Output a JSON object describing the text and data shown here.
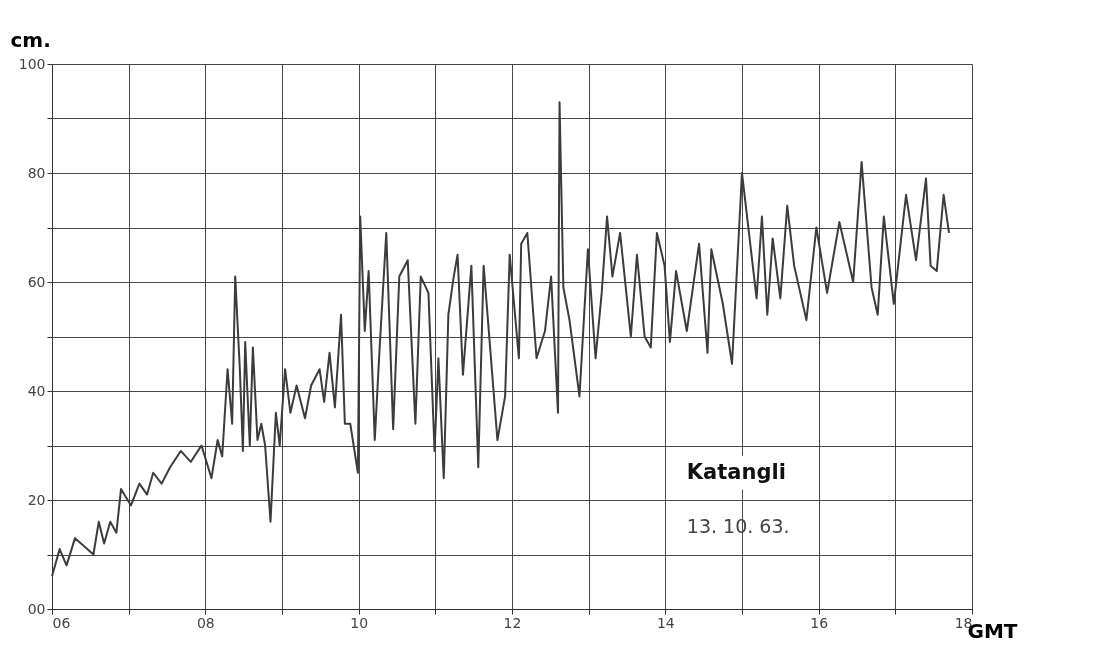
{
  "chart_data": {
    "type": "line",
    "ylabel": "cm.",
    "xlabel": "GMT",
    "annotations": [
      "Katangli",
      "13. 10. 63."
    ],
    "xlim": [
      6,
      18
    ],
    "ylim": [
      0,
      100
    ],
    "xticks": [
      {
        "value": 6,
        "label": "06"
      },
      {
        "value": 7,
        "label": null
      },
      {
        "value": 8,
        "label": "08"
      },
      {
        "value": 9,
        "label": null
      },
      10,
      {
        "value": 11,
        "label": null
      },
      12,
      {
        "value": 13,
        "label": null
      },
      14,
      {
        "value": 15,
        "label": null
      },
      16,
      {
        "value": 17,
        "label": null
      },
      18
    ],
    "yticks": [
      {
        "value": 0,
        "label": "00"
      },
      {
        "value": 10,
        "label": null
      },
      20,
      {
        "value": 30,
        "label": null
      },
      40,
      {
        "value": 50,
        "label": null
      },
      60,
      {
        "value": 70,
        "label": null
      },
      80,
      {
        "value": 90,
        "label": null
      },
      100
    ],
    "grid": true,
    "marker": "none",
    "line_style": "solid",
    "series": [
      {
        "color": "#3c3c3c",
        "x": [
          6.0,
          6.1,
          6.19,
          6.3,
          6.46,
          6.54,
          6.61,
          6.68,
          6.76,
          6.84,
          6.9,
          7.03,
          7.14,
          7.24,
          7.32,
          7.43,
          7.54,
          7.68,
          7.81,
          7.95,
          8.08,
          8.16,
          8.22,
          8.29,
          8.35,
          8.39,
          8.45,
          8.49,
          8.52,
          8.58,
          8.62,
          8.68,
          8.73,
          8.78,
          8.85,
          8.92,
          8.97,
          9.04,
          9.11,
          9.19,
          9.3,
          9.38,
          9.49,
          9.55,
          9.62,
          9.69,
          9.77,
          9.82,
          9.89,
          9.99,
          10.02,
          10.08,
          10.13,
          10.21,
          10.27,
          10.36,
          10.45,
          10.53,
          10.64,
          10.74,
          10.81,
          10.91,
          10.99,
          11.04,
          11.11,
          11.17,
          11.24,
          11.29,
          11.36,
          11.47,
          11.56,
          11.63,
          11.81,
          11.91,
          11.97,
          12.09,
          12.12,
          12.2,
          12.32,
          12.43,
          12.51,
          12.6,
          12.62,
          12.67,
          12.75,
          12.88,
          12.99,
          13.09,
          13.17,
          13.24,
          13.31,
          13.41,
          13.55,
          13.63,
          13.73,
          13.81,
          13.89,
          13.99,
          14.06,
          14.14,
          14.28,
          14.44,
          14.55,
          14.6,
          14.75,
          14.87,
          15.0,
          15.19,
          15.26,
          15.33,
          15.4,
          15.5,
          15.59,
          15.68,
          15.84,
          15.97,
          16.11,
          16.27,
          16.45,
          16.56,
          16.69,
          16.77,
          16.85,
          16.98,
          17.14,
          17.27,
          17.4,
          17.46,
          17.54,
          17.63,
          17.7
        ],
        "values": [
          6,
          11,
          8,
          13,
          11,
          10,
          16,
          12,
          16,
          14,
          22,
          19,
          23,
          21,
          25,
          23,
          26,
          29,
          27,
          30,
          24,
          31,
          28,
          44,
          34,
          61,
          44,
          29,
          49,
          30,
          48,
          31,
          34,
          30,
          16,
          36,
          30,
          44,
          36,
          41,
          35,
          41,
          44,
          38,
          47,
          37,
          54,
          34,
          34,
          25,
          72,
          51,
          62,
          31,
          47,
          69,
          33,
          61,
          64,
          34,
          61,
          58,
          29,
          46,
          24,
          54,
          61,
          65,
          43,
          63,
          26,
          63,
          31,
          39,
          65,
          46,
          67,
          69,
          46,
          51,
          61,
          36,
          93,
          59,
          53,
          39,
          66,
          46,
          58,
          72,
          61,
          69,
          50,
          65,
          50,
          48,
          69,
          63,
          49,
          62,
          51,
          67,
          47,
          66,
          56,
          45,
          80,
          57,
          72,
          54,
          68,
          57,
          74,
          63,
          53,
          70,
          58,
          71,
          60,
          82,
          59,
          54,
          72,
          56,
          76,
          64,
          79,
          63,
          62,
          76,
          69
        ]
      }
    ]
  }
}
